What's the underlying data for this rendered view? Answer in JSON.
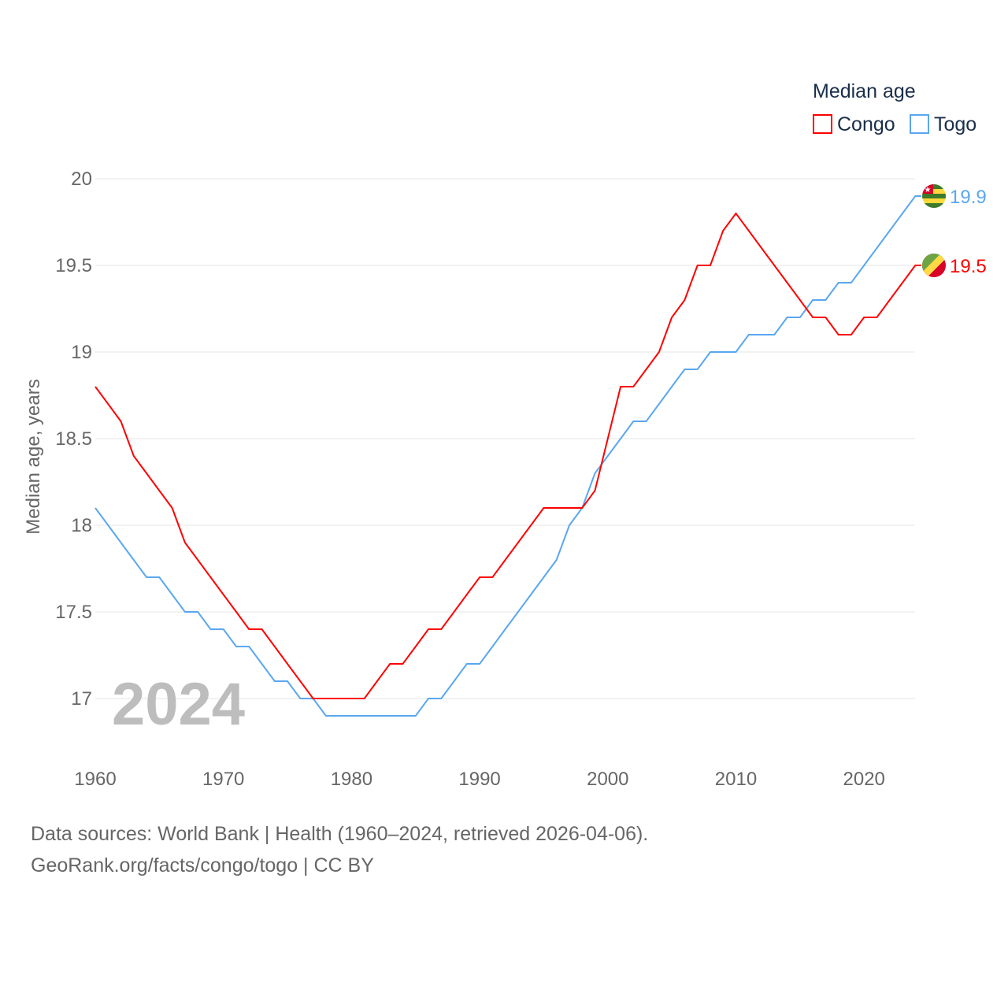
{
  "chart_data": {
    "type": "line",
    "title": "Median age",
    "xlabel": "",
    "ylabel": "Median age, years",
    "year_watermark": "2024",
    "xlim": [
      1960,
      2024
    ],
    "ylim": [
      16.7,
      20
    ],
    "xticks": [
      1960,
      1970,
      1980,
      1990,
      2000,
      2010,
      2020
    ],
    "yticks": [
      17,
      17.5,
      18,
      18.5,
      19,
      19.5,
      20
    ],
    "ytick_labels": [
      "17",
      "17.5",
      "18",
      "18.5",
      "19",
      "19.5",
      "20"
    ],
    "xtick_labels": [
      "1960",
      "1970",
      "1980",
      "1990",
      "2000",
      "2010",
      "2020"
    ],
    "grid": true,
    "legend_placement": "top-right",
    "x": [
      1960,
      1961,
      1962,
      1963,
      1964,
      1965,
      1966,
      1967,
      1968,
      1969,
      1970,
      1971,
      1972,
      1973,
      1974,
      1975,
      1976,
      1977,
      1978,
      1979,
      1980,
      1981,
      1982,
      1983,
      1984,
      1985,
      1986,
      1987,
      1988,
      1989,
      1990,
      1991,
      1992,
      1993,
      1994,
      1995,
      1996,
      1997,
      1998,
      1999,
      2000,
      2001,
      2002,
      2003,
      2004,
      2005,
      2006,
      2007,
      2008,
      2009,
      2010,
      2011,
      2012,
      2013,
      2014,
      2015,
      2016,
      2017,
      2018,
      2019,
      2020,
      2021,
      2022,
      2023,
      2024
    ],
    "series": [
      {
        "name": "Congo",
        "color": "#ff0000",
        "end_label": "19.5",
        "values": [
          18.8,
          18.7,
          18.6,
          18.4,
          18.3,
          18.2,
          18.1,
          17.9,
          17.8,
          17.7,
          17.6,
          17.5,
          17.4,
          17.4,
          17.3,
          17.2,
          17.1,
          17.0,
          17.0,
          17.0,
          17.0,
          17.0,
          17.1,
          17.2,
          17.2,
          17.3,
          17.4,
          17.4,
          17.5,
          17.6,
          17.7,
          17.7,
          17.8,
          17.9,
          18.0,
          18.1,
          18.1,
          18.1,
          18.1,
          18.2,
          18.5,
          18.8,
          18.8,
          18.9,
          19.0,
          19.2,
          19.3,
          19.5,
          19.5,
          19.7,
          19.8,
          19.7,
          19.6,
          19.5,
          19.4,
          19.3,
          19.2,
          19.2,
          19.1,
          19.1,
          19.2,
          19.2,
          19.3,
          19.4,
          19.5
        ]
      },
      {
        "name": "Togo",
        "color": "#5aa7f0",
        "end_label": "19.9",
        "values": [
          18.1,
          18.0,
          17.9,
          17.8,
          17.7,
          17.7,
          17.6,
          17.5,
          17.5,
          17.4,
          17.4,
          17.3,
          17.3,
          17.2,
          17.1,
          17.1,
          17.0,
          17.0,
          16.9,
          16.9,
          16.9,
          16.9,
          16.9,
          16.9,
          16.9,
          16.9,
          17.0,
          17.0,
          17.1,
          17.2,
          17.2,
          17.3,
          17.4,
          17.5,
          17.6,
          17.7,
          17.8,
          18.0,
          18.1,
          18.3,
          18.4,
          18.5,
          18.6,
          18.6,
          18.7,
          18.8,
          18.9,
          18.9,
          19.0,
          19.0,
          19.0,
          19.1,
          19.1,
          19.1,
          19.2,
          19.2,
          19.3,
          19.3,
          19.4,
          19.4,
          19.5,
          19.6,
          19.7,
          19.8,
          19.9
        ]
      }
    ]
  },
  "footer": {
    "line1": "Data sources: World Bank | Health (1960–2024, retrieved 2026-04-06).",
    "line2": "GeoRank.org/facts/congo/togo | CC BY"
  }
}
